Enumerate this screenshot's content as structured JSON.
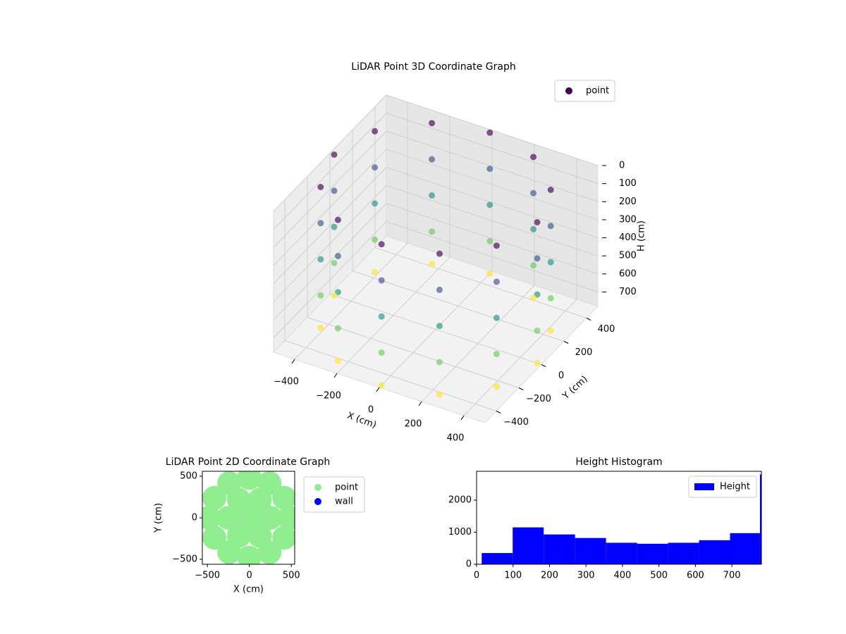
{
  "chart_data": [
    {
      "type": "scatter3d",
      "title": "LiDAR Point 3D Coordinate Graph",
      "x_label": "X (cm)",
      "y_label": "Y (cm)",
      "z_label": "H (cm)",
      "colormap": "viridis",
      "legend": "upper right",
      "series": [
        {
          "name": "point",
          "color": "#440154",
          "x": [
            480,
            416,
            240,
            0,
            -240,
            -416,
            -480,
            -416,
            -240,
            0,
            240,
            416,
            480,
            416,
            240,
            0,
            -240,
            -416,
            -480,
            -416,
            -240,
            0,
            240,
            416,
            480,
            416,
            240,
            0,
            -240,
            -416,
            -480,
            -416,
            -240,
            0,
            240,
            416,
            480,
            416,
            240,
            0,
            -240,
            -416,
            -480,
            -416,
            -240,
            0,
            240,
            416,
            480,
            416,
            240,
            0,
            -240,
            -416,
            -480,
            -416,
            -240,
            0,
            240,
            416
          ],
          "y": [
            0,
            240,
            416,
            480,
            416,
            240,
            0,
            -240,
            -416,
            -480,
            -416,
            -240,
            0,
            240,
            416,
            480,
            416,
            240,
            0,
            -240,
            -416,
            -480,
            -416,
            -240,
            0,
            240,
            416,
            480,
            416,
            240,
            0,
            -240,
            -416,
            -480,
            -416,
            -240,
            0,
            240,
            416,
            480,
            416,
            240,
            0,
            -240,
            -416,
            -480,
            -416,
            -240,
            0,
            240,
            416,
            480,
            416,
            240,
            0,
            -240,
            -416,
            -480,
            -416,
            -240
          ],
          "z": [
            0,
            0,
            0,
            0,
            0,
            0,
            0,
            0,
            0,
            0,
            0,
            0,
            200,
            200,
            200,
            200,
            200,
            200,
            200,
            200,
            200,
            200,
            200,
            200,
            400,
            400,
            400,
            400,
            400,
            400,
            400,
            400,
            400,
            400,
            400,
            400,
            600,
            600,
            600,
            600,
            600,
            600,
            600,
            600,
            600,
            600,
            600,
            600,
            780,
            780,
            780,
            780,
            780,
            780,
            780,
            780,
            780,
            780,
            780,
            780
          ]
        }
      ],
      "xlim": [
        -500,
        500
      ],
      "ylim": [
        -500,
        500
      ],
      "zlim": [
        0,
        780
      ],
      "z_inverted": true,
      "xticks": [
        {
          "value": -400,
          "label": "−400"
        },
        {
          "value": -200,
          "label": "−200"
        },
        0,
        200,
        400
      ],
      "yticks": [
        {
          "value": -400,
          "label": "−400"
        },
        {
          "value": -200,
          "label": "−200"
        },
        0,
        200,
        400
      ],
      "zticks": [
        0,
        100,
        200,
        300,
        400,
        500,
        600,
        700
      ]
    },
    {
      "type": "scatter",
      "title": "LiDAR Point 2D Coordinate Graph",
      "x_label": "X (cm)",
      "y_label": "Y (cm)",
      "legend": "outside right",
      "series": [
        {
          "name": "point",
          "color": "#90ee90",
          "x": [
            0,
            250,
            125,
            -125,
            -250,
            -125,
            125,
            480,
            416,
            240,
            0,
            -240,
            -416,
            -480,
            -416,
            -240,
            0,
            240,
            416
          ],
          "y": [
            0,
            0,
            217,
            217,
            0,
            -217,
            -217,
            0,
            240,
            416,
            480,
            416,
            240,
            0,
            -240,
            -416,
            -480,
            -416,
            -240
          ]
        },
        {
          "name": "wall",
          "color": "#0000ff",
          "x": [],
          "y": []
        }
      ],
      "xlim": [
        -560,
        540
      ],
      "ylim": [
        -560,
        560
      ],
      "xticks": [
        {
          "value": -500,
          "label": "−500"
        },
        0,
        500
      ],
      "yticks": [
        {
          "value": -500,
          "label": "−500"
        },
        0,
        500
      ]
    },
    {
      "type": "histogram",
      "title": "Height Histogram",
      "legend": "upper right",
      "series": [
        {
          "name": "Height",
          "color": "#0000ff",
          "bins": [
            14,
            99,
            184,
            270,
            355,
            440,
            525,
            610,
            695,
            777,
            781
          ],
          "values": [
            350,
            1150,
            930,
            820,
            670,
            640,
            670,
            750,
            970,
            2800
          ]
        }
      ],
      "xlim": [
        0,
        781
      ],
      "ylim": [
        0,
        2900
      ],
      "xticks": [
        0,
        100,
        200,
        300,
        400,
        500,
        600,
        700
      ],
      "yticks": [
        0,
        1000,
        2000
      ]
    }
  ]
}
